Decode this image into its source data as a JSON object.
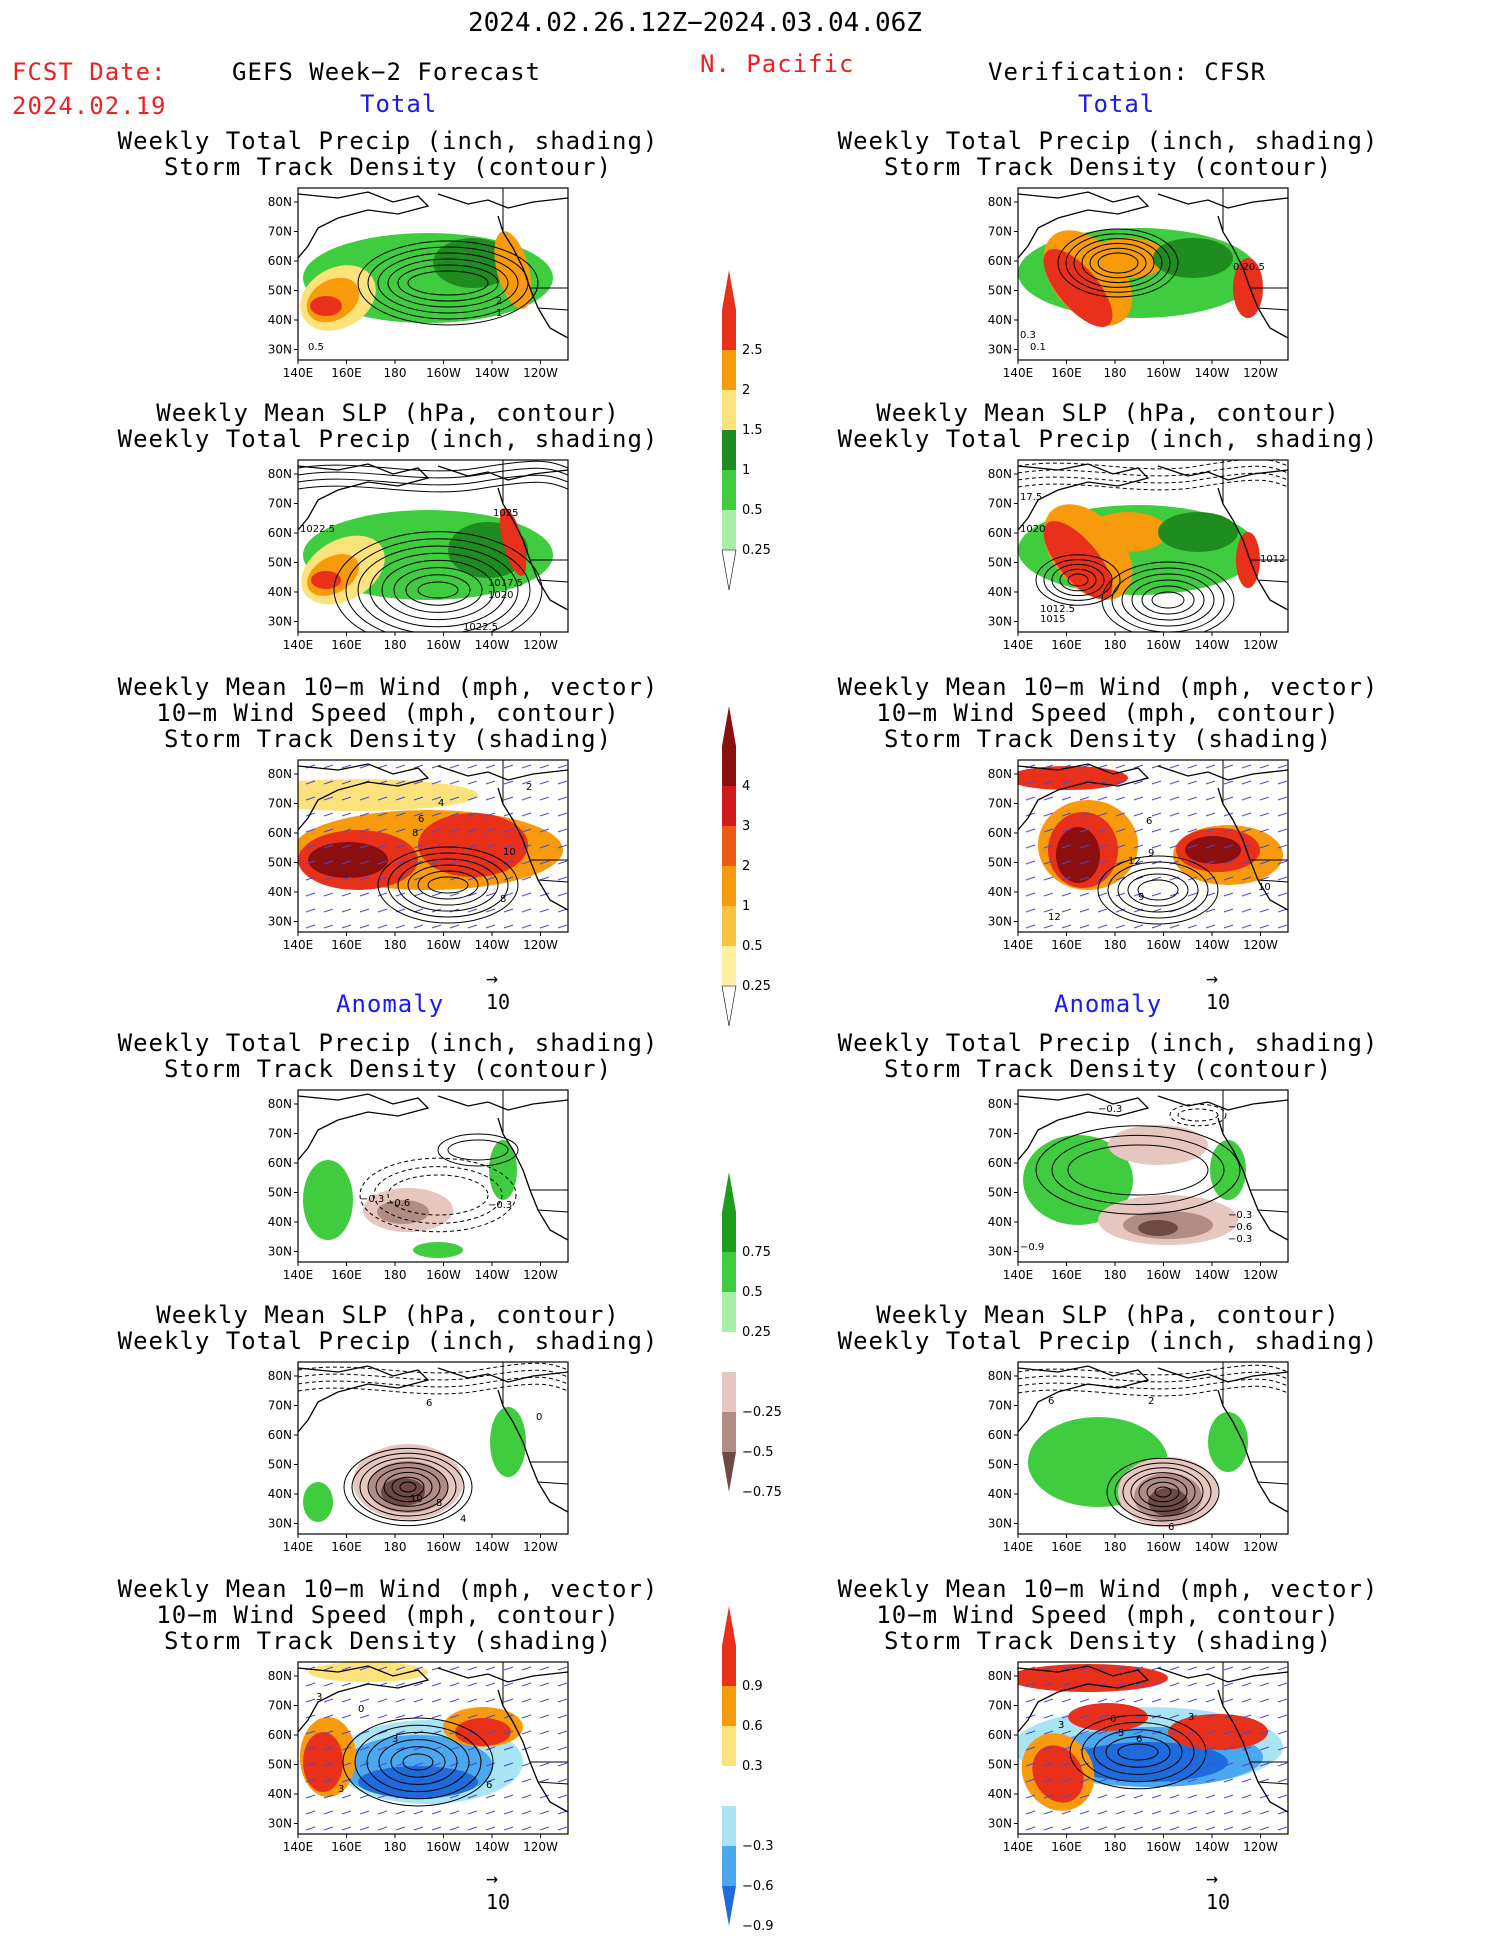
{
  "header": {
    "date_range": "2024.02.26.12Z−2024.03.04.06Z",
    "fcst_label": "FCST Date:",
    "fcst_date": "2024.02.19",
    "forecast_title": "GEFS Week−2 Forecast",
    "region": "N. Pacific",
    "verification": "Verification: CFSR"
  },
  "sections": {
    "total": "Total",
    "anomaly": "Anomaly"
  },
  "panel_titles": {
    "precip_track": [
      "Weekly Total Precip (inch, shading)",
      "Storm Track Density (contour)"
    ],
    "slp_precip": [
      "Weekly Mean SLP (hPa, contour)",
      "Weekly Total Precip (inch, shading)"
    ],
    "wind_track": [
      "Weekly Mean 10−m Wind (mph, vector)",
      "10−m Wind Speed (mph, contour)",
      "Storm Track Density (shading)"
    ]
  },
  "axes": {
    "lat_ticks": [
      "80N",
      "70N",
      "60N",
      "50N",
      "40N",
      "30N"
    ],
    "lon_ticks": [
      "140E",
      "160E",
      "180",
      "160W",
      "140W",
      "120W"
    ]
  },
  "vector_reference": "10",
  "colors": {
    "title_red": "#ee2020",
    "section_blue": "#1a1aee",
    "land_outline": "#000000"
  },
  "chart_data": [
    {
      "type": "heatmap",
      "panel": "forecast-total-precip",
      "title": [
        "Weekly Total Precip (inch, shading)",
        "Storm Track Density (contour)"
      ],
      "contour_labels": [
        "2",
        "1",
        "0.5"
      ],
      "xlim": [
        "140E",
        "120W"
      ],
      "ylim": [
        "30N",
        "80N"
      ]
    },
    {
      "type": "heatmap",
      "panel": "forecast-total-slp",
      "title": [
        "Weekly Mean SLP (hPa, contour)",
        "Weekly Total Precip (inch, shading)"
      ],
      "contour_labels": [
        "1022.5",
        "1025",
        "1017.5",
        "1020",
        "1022.5"
      ]
    },
    {
      "type": "heatmap",
      "panel": "forecast-total-wind",
      "title": [
        "Weekly Mean 10−m Wind (mph, vector)",
        "10−m Wind Speed (mph, contour)",
        "Storm Track Density (shading)"
      ],
      "contour_labels": [
        "2",
        "4",
        "6",
        "8",
        "10",
        "8"
      ]
    },
    {
      "type": "heatmap",
      "panel": "verification-total-precip",
      "title": [
        "Weekly Total Precip (inch, shading)",
        "Storm Track Density (contour)"
      ],
      "contour_labels": [
        "0.20.5",
        "0.3",
        "0.1"
      ]
    },
    {
      "type": "heatmap",
      "panel": "verification-total-slp",
      "title": [
        "Weekly Mean SLP (hPa, contour)",
        "Weekly Total Precip (inch, shading)"
      ],
      "contour_labels": [
        "17.5",
        "1020",
        "1012",
        "1012.5",
        "1015"
      ]
    },
    {
      "type": "heatmap",
      "panel": "verification-total-wind",
      "title": [
        "Weekly Mean 10−m Wind (mph, vector)",
        "10−m Wind Speed (mph, contour)",
        "Storm Track Density (shading)"
      ],
      "contour_labels": [
        "6",
        "12",
        "9",
        "9",
        "12",
        "10"
      ]
    },
    {
      "type": "heatmap",
      "panel": "forecast-anomaly-precip",
      "title": [
        "Weekly Total Precip (inch, shading)",
        "Storm Track Density (contour)"
      ],
      "contour_labels": [
        "−0.3",
        "−0.6",
        "−0.3"
      ]
    },
    {
      "type": "heatmap",
      "panel": "forecast-anomaly-slp",
      "title": [
        "Weekly Mean SLP (hPa, contour)",
        "Weekly Total Precip (inch, shading)"
      ],
      "contour_labels": [
        "6",
        "10",
        "8",
        "4",
        "0"
      ]
    },
    {
      "type": "heatmap",
      "panel": "forecast-anomaly-wind",
      "title": [
        "Weekly Mean 10−m Wind (mph, vector)",
        "10−m Wind Speed (mph, contour)",
        "Storm Track Density (shading)"
      ],
      "contour_labels": [
        "3",
        "0",
        "3",
        "6",
        "3"
      ]
    },
    {
      "type": "heatmap",
      "panel": "verification-anomaly-precip",
      "title": [
        "Weekly Total Precip (inch, shading)",
        "Storm Track Density (contour)"
      ],
      "contour_labels": [
        "−0.3",
        "−0.9",
        "−0.3",
        "−0.6",
        "−0.3"
      ]
    },
    {
      "type": "heatmap",
      "panel": "verification-anomaly-slp",
      "title": [
        "Weekly Mean SLP (hPa, contour)",
        "Weekly Total Precip (inch, shading)"
      ],
      "contour_labels": [
        "6",
        "2",
        "6"
      ]
    },
    {
      "type": "heatmap",
      "panel": "verification-anomaly-wind",
      "title": [
        "Weekly Mean 10−m Wind (mph, vector)",
        "10−m Wind Speed (mph, contour)",
        "Storm Track Density (shading)"
      ],
      "contour_labels": [
        "0",
        "3",
        "5",
        "6",
        "3"
      ]
    }
  ],
  "colorbars": {
    "precip_total": {
      "labels": [
        "2.5",
        "2",
        "1.5",
        "1",
        "0.5",
        "0.25"
      ],
      "colors": [
        "#e8301a",
        "#f79a0c",
        "#fce27a",
        "#1e8c1e",
        "#3fcc3f",
        "#a6f0a6"
      ]
    },
    "track_total": {
      "labels": [
        "4",
        "3",
        "2",
        "1",
        "0.5",
        "0.25"
      ],
      "colors": [
        "#8b0f0f",
        "#d21a1a",
        "#ee5a12",
        "#f79a0c",
        "#fbc23f",
        "#fef0a0"
      ]
    },
    "precip_anom": {
      "labels": [
        "0.75",
        "0.5",
        "0.25",
        "−0.25",
        "−0.5",
        "−0.75"
      ],
      "colors": [
        "#1e9c1e",
        "#3fcc3f",
        "#a6f0a6",
        "#e7c6c0",
        "#b08c84",
        "#6e4a42"
      ]
    },
    "track_anom": {
      "labels": [
        "0.9",
        "0.6",
        "0.3",
        "−0.3",
        "−0.6",
        "−0.9"
      ],
      "colors": [
        "#e8301a",
        "#f79a0c",
        "#fce27a",
        "#a8e4f4",
        "#4aa8f0",
        "#1e6cdc"
      ]
    }
  }
}
